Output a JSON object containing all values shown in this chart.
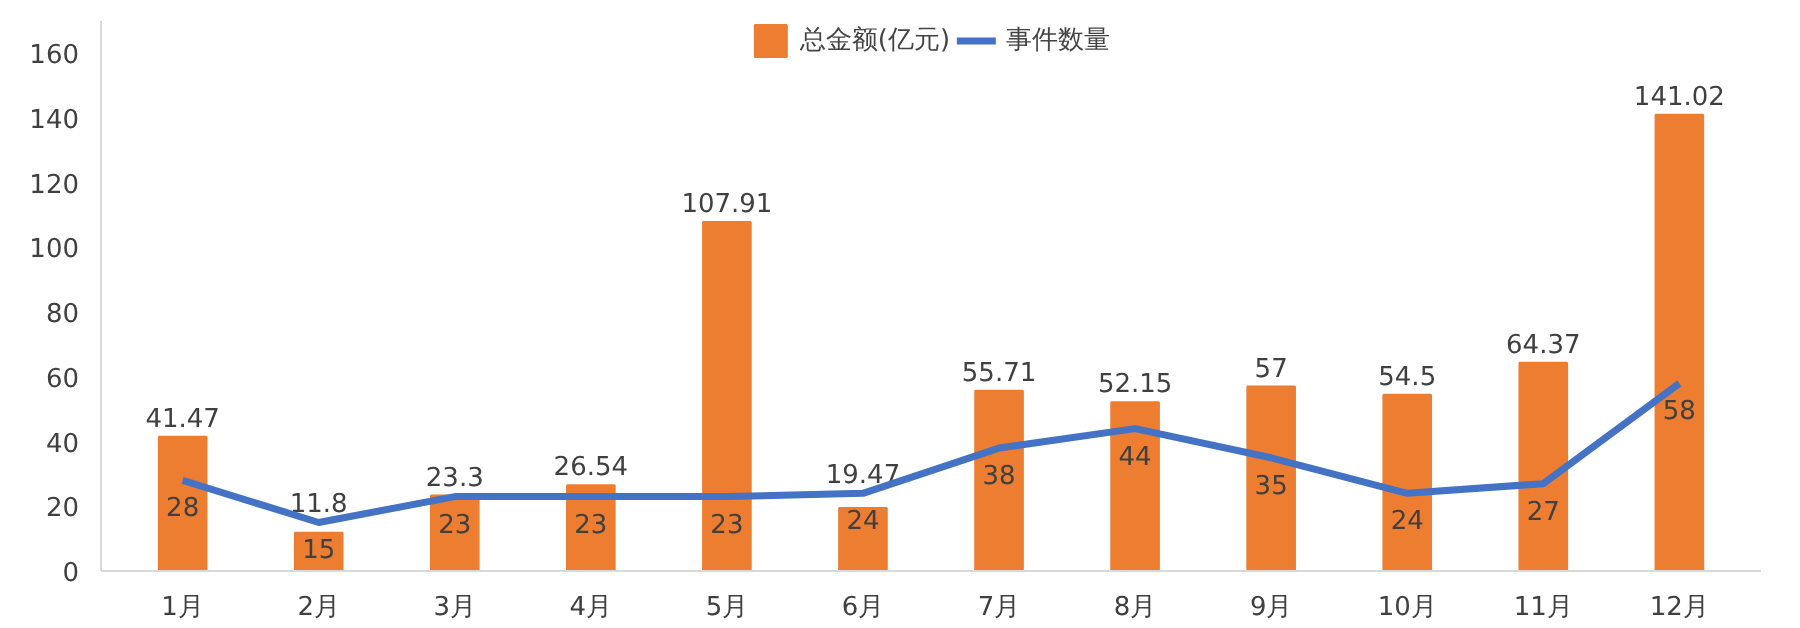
{
  "chart_data": {
    "type": "bar",
    "categories": [
      "1月",
      "2月",
      "3月",
      "4月",
      "5月",
      "6月",
      "7月",
      "8月",
      "9月",
      "10月",
      "11月",
      "12月"
    ],
    "series": [
      {
        "name": "总金额(亿元)",
        "color": "#ed7d31",
        "values": [
          41.47,
          11.8,
          23.3,
          26.54,
          107.91,
          19.47,
          55.71,
          52.15,
          57,
          54.5,
          64.37,
          141.02
        ]
      },
      {
        "name": "事件数量",
        "type": "line",
        "color": "#4472c4",
        "values": [
          28,
          15,
          23,
          23,
          23,
          24,
          38,
          44,
          35,
          24,
          27,
          58
        ]
      }
    ],
    "ylim": [
      0,
      170
    ],
    "yticks": [
      0,
      20,
      40,
      60,
      80,
      100,
      120,
      140,
      160
    ],
    "data_labels": true,
    "grid": false,
    "legend": "top",
    "marker": "none",
    "line_style": "solid"
  }
}
